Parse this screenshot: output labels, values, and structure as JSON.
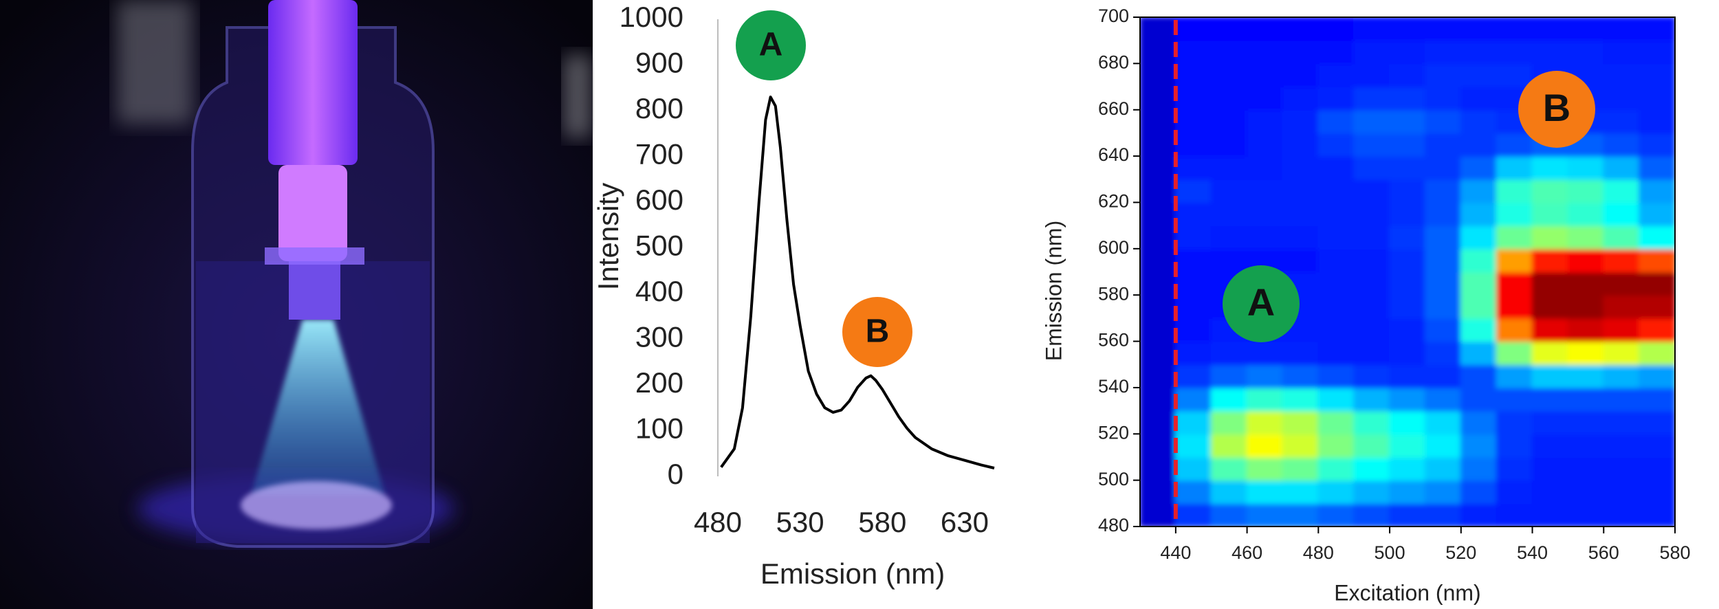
{
  "chart_data": [
    {
      "type": "line",
      "xlabel": "Emission (nm)",
      "ylabel": "Intensity",
      "x": [
        482,
        490,
        495,
        500,
        505,
        509,
        512,
        515,
        518,
        522,
        526,
        530,
        535,
        540,
        545,
        550,
        555,
        560,
        565,
        570,
        573,
        576,
        580,
        585,
        590,
        595,
        600,
        610,
        620,
        630,
        640,
        648
      ],
      "values": [
        20,
        60,
        150,
        350,
        600,
        780,
        830,
        810,
        720,
        560,
        420,
        330,
        230,
        180,
        150,
        140,
        145,
        165,
        195,
        215,
        220,
        210,
        190,
        160,
        130,
        105,
        85,
        60,
        45,
        35,
        25,
        18
      ],
      "color": "#000000",
      "xlim": [
        480,
        648
      ],
      "ylim": [
        0,
        1000
      ],
      "xticks": [
        480,
        530,
        580,
        630
      ],
      "yticks": [
        0,
        100,
        200,
        300,
        400,
        500,
        600,
        700,
        800,
        900,
        1000
      ],
      "annotations": [
        "A",
        "B"
      ],
      "annotation_colors": [
        "#14a04e",
        "#f57a14"
      ]
    },
    {
      "type": "heatmap",
      "xlabel": "Excitation (nm)",
      "ylabel": "Emission (nm)",
      "x": [
        435,
        445,
        455,
        465,
        475,
        485,
        495,
        505,
        515,
        525,
        535,
        545,
        555,
        565,
        575
      ],
      "y": [
        485,
        495,
        505,
        515,
        525,
        535,
        545,
        555,
        565,
        575,
        585,
        595,
        605,
        615,
        625,
        635,
        645,
        655,
        665,
        675,
        685,
        695
      ],
      "z": [
        [
          0.08,
          0.18,
          0.22,
          0.24,
          0.24,
          0.22,
          0.2,
          0.18,
          0.18,
          0.16,
          0.15,
          0.15,
          0.15,
          0.15,
          0.15
        ],
        [
          0.08,
          0.25,
          0.32,
          0.35,
          0.35,
          0.33,
          0.3,
          0.28,
          0.26,
          0.2,
          0.16,
          0.15,
          0.15,
          0.15,
          0.15
        ],
        [
          0.08,
          0.32,
          0.45,
          0.5,
          0.48,
          0.42,
          0.38,
          0.35,
          0.32,
          0.24,
          0.17,
          0.15,
          0.15,
          0.15,
          0.15
        ],
        [
          0.08,
          0.35,
          0.55,
          0.62,
          0.58,
          0.5,
          0.45,
          0.4,
          0.36,
          0.26,
          0.18,
          0.16,
          0.16,
          0.16,
          0.16
        ],
        [
          0.08,
          0.33,
          0.5,
          0.58,
          0.55,
          0.48,
          0.42,
          0.38,
          0.34,
          0.24,
          0.18,
          0.17,
          0.17,
          0.17,
          0.17
        ],
        [
          0.08,
          0.25,
          0.38,
          0.42,
          0.4,
          0.35,
          0.3,
          0.27,
          0.24,
          0.2,
          0.2,
          0.2,
          0.2,
          0.2,
          0.2
        ],
        [
          0.08,
          0.18,
          0.22,
          0.24,
          0.22,
          0.2,
          0.18,
          0.17,
          0.17,
          0.2,
          0.28,
          0.32,
          0.32,
          0.3,
          0.28
        ],
        [
          0.08,
          0.15,
          0.16,
          0.16,
          0.16,
          0.15,
          0.15,
          0.16,
          0.18,
          0.3,
          0.5,
          0.6,
          0.62,
          0.6,
          0.55
        ],
        [
          0.08,
          0.14,
          0.15,
          0.15,
          0.15,
          0.15,
          0.15,
          0.16,
          0.2,
          0.4,
          0.75,
          0.9,
          0.92,
          0.9,
          0.85
        ],
        [
          0.08,
          0.14,
          0.14,
          0.15,
          0.15,
          0.15,
          0.15,
          0.17,
          0.22,
          0.45,
          0.88,
          0.98,
          0.98,
          0.95,
          0.95
        ],
        [
          0.08,
          0.14,
          0.14,
          0.15,
          0.15,
          0.15,
          0.15,
          0.17,
          0.22,
          0.45,
          0.88,
          0.98,
          0.98,
          0.98,
          0.98
        ],
        [
          0.08,
          0.14,
          0.14,
          0.14,
          0.14,
          0.15,
          0.15,
          0.17,
          0.22,
          0.42,
          0.72,
          0.85,
          0.88,
          0.85,
          0.8
        ],
        [
          0.08,
          0.16,
          0.15,
          0.15,
          0.15,
          0.16,
          0.16,
          0.18,
          0.22,
          0.35,
          0.48,
          0.52,
          0.5,
          0.45,
          0.38
        ],
        [
          0.08,
          0.16,
          0.16,
          0.16,
          0.16,
          0.16,
          0.16,
          0.17,
          0.2,
          0.3,
          0.4,
          0.44,
          0.42,
          0.38,
          0.3
        ],
        [
          0.08,
          0.18,
          0.16,
          0.16,
          0.16,
          0.16,
          0.16,
          0.17,
          0.2,
          0.28,
          0.42,
          0.45,
          0.44,
          0.4,
          0.28
        ],
        [
          0.08,
          0.15,
          0.15,
          0.15,
          0.16,
          0.16,
          0.18,
          0.18,
          0.18,
          0.22,
          0.32,
          0.35,
          0.34,
          0.3,
          0.22
        ],
        [
          0.08,
          0.14,
          0.14,
          0.15,
          0.16,
          0.18,
          0.2,
          0.2,
          0.18,
          0.18,
          0.2,
          0.22,
          0.22,
          0.2,
          0.18
        ],
        [
          0.08,
          0.14,
          0.14,
          0.15,
          0.16,
          0.2,
          0.22,
          0.22,
          0.2,
          0.18,
          0.17,
          0.17,
          0.17,
          0.17,
          0.16
        ],
        [
          0.08,
          0.14,
          0.14,
          0.14,
          0.15,
          0.16,
          0.18,
          0.18,
          0.17,
          0.16,
          0.16,
          0.16,
          0.16,
          0.16,
          0.16
        ],
        [
          0.08,
          0.14,
          0.14,
          0.14,
          0.14,
          0.15,
          0.15,
          0.16,
          0.17,
          0.17,
          0.17,
          0.16,
          0.16,
          0.16,
          0.16
        ],
        [
          0.08,
          0.14,
          0.14,
          0.14,
          0.14,
          0.14,
          0.15,
          0.15,
          0.16,
          0.16,
          0.16,
          0.16,
          0.16,
          0.15,
          0.15
        ],
        [
          0.08,
          0.13,
          0.13,
          0.13,
          0.13,
          0.13,
          0.14,
          0.14,
          0.14,
          0.14,
          0.14,
          0.14,
          0.14,
          0.14,
          0.14
        ]
      ],
      "zlim": [
        0,
        1
      ],
      "colormap": "jet",
      "xlim": [
        430,
        580
      ],
      "ylim": [
        480,
        700
      ],
      "xticks": [
        440,
        460,
        480,
        500,
        520,
        540,
        560,
        580
      ],
      "yticks": [
        480,
        500,
        520,
        540,
        560,
        580,
        600,
        620,
        640,
        660,
        680,
        700
      ],
      "vline": 440,
      "vline_color": "#e8202a",
      "annotations": [
        "A",
        "B"
      ],
      "annotation_colors": [
        "#14a04e",
        "#f57a14"
      ]
    }
  ]
}
